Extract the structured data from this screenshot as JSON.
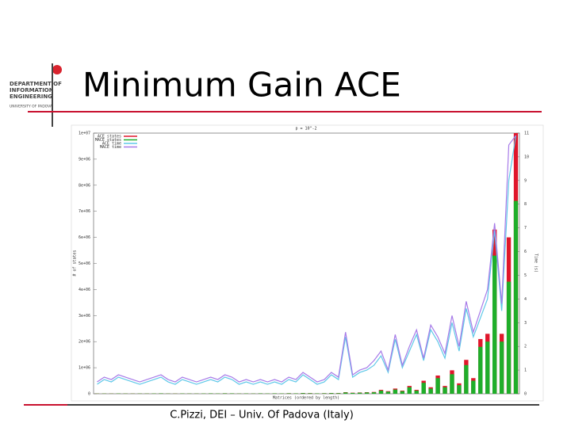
{
  "header": {
    "logo": [
      "DEPARTMENT OF",
      "INFORMATION",
      "ENGINEERING",
      "UNIVERSITY OF PADOVA"
    ],
    "title": "Minimum Gain ACE"
  },
  "footer": "C.Pizzi, DEI – Univ. Of Padova (Italy)",
  "chart_data": {
    "type": "bar",
    "title": "p = 10^-2",
    "x_label": "Matrices (ordered by length)",
    "y_label": "# of states",
    "y2_label": "Time (s)",
    "legend": "upper left",
    "grid": false,
    "categories": [
      null,
      null,
      null,
      null,
      null,
      null,
      null,
      null,
      null,
      null,
      null,
      null,
      null,
      null,
      null,
      null,
      null,
      null,
      null,
      null,
      null,
      null,
      null,
      null,
      null,
      null,
      null,
      null,
      null,
      null,
      null,
      null,
      null,
      null,
      null,
      null,
      null,
      null,
      null,
      null,
      null,
      null,
      null,
      null,
      null,
      null,
      null,
      null,
      null,
      null,
      null,
      null,
      null,
      null,
      null,
      null,
      null,
      null,
      null,
      null
    ],
    "ylim": [
      0,
      10000000
    ],
    "yticks": [
      0,
      {
        "value": 1000000,
        "label": "1e+06"
      },
      {
        "value": 2000000,
        "label": "2e+06"
      },
      {
        "value": 3000000,
        "label": "3e+06"
      },
      {
        "value": 4000000,
        "label": "4e+06"
      },
      {
        "value": 5000000,
        "label": "5e+06"
      },
      {
        "value": 6000000,
        "label": "6e+06"
      },
      {
        "value": 7000000,
        "label": "7e+06"
      },
      {
        "value": 8000000,
        "label": "8e+06"
      },
      {
        "value": 9000000,
        "label": "9e+06"
      },
      {
        "value": 10000000,
        "label": "1e+07"
      }
    ],
    "y2lim": [
      0,
      11
    ],
    "y2ticks": [
      0,
      1,
      2,
      3,
      4,
      5,
      6,
      7,
      8,
      9,
      10,
      11
    ],
    "series": [
      {
        "name": "ACE states",
        "color": "#e0162b",
        "kind": "bar",
        "values": [
          10000,
          12000,
          10000,
          15000,
          12000,
          10000,
          14000,
          12000,
          15000,
          18000,
          12000,
          10000,
          15000,
          14000,
          12000,
          15000,
          18000,
          15000,
          20000,
          18000,
          14000,
          16000,
          14000,
          18000,
          15000,
          18000,
          16000,
          22000,
          18000,
          30000,
          25000,
          18000,
          22000,
          30000,
          28000,
          60000,
          40000,
          50000,
          60000,
          70000,
          150000,
          100000,
          200000,
          120000,
          300000,
          150000,
          500000,
          250000,
          700000,
          300000,
          900000,
          400000,
          1300000,
          600000,
          2100000,
          2300000,
          6300000,
          2300000,
          6000000,
          10000000
        ]
      },
      {
        "name": "MACE states",
        "color": "#1fae2a",
        "kind": "bar",
        "values": [
          8000,
          10000,
          8000,
          12000,
          10000,
          8000,
          11000,
          10000,
          12000,
          15000,
          10000,
          8000,
          12000,
          11000,
          10000,
          12000,
          15000,
          12000,
          16000,
          15000,
          11000,
          13000,
          11000,
          15000,
          12000,
          15000,
          13000,
          18000,
          15000,
          25000,
          20000,
          15000,
          18000,
          25000,
          22000,
          50000,
          32000,
          40000,
          50000,
          56000,
          120000,
          80000,
          160000,
          100000,
          250000,
          120000,
          420000,
          200000,
          600000,
          250000,
          750000,
          330000,
          1100000,
          500000,
          1800000,
          2000000,
          5300000,
          2000000,
          4300000,
          7400000
        ]
      },
      {
        "name": "ACE time",
        "color": "#5fc8e8",
        "kind": "line",
        "axis": "y2",
        "values": [
          0.4,
          0.6,
          0.5,
          0.7,
          0.6,
          0.5,
          0.4,
          0.5,
          0.6,
          0.7,
          0.5,
          0.4,
          0.6,
          0.5,
          0.4,
          0.5,
          0.6,
          0.5,
          0.7,
          0.6,
          0.4,
          0.5,
          0.4,
          0.5,
          0.4,
          0.5,
          0.4,
          0.6,
          0.5,
          0.8,
          0.6,
          0.4,
          0.5,
          0.8,
          0.6,
          2.4,
          0.7,
          0.9,
          1.0,
          1.2,
          1.6,
          0.9,
          2.3,
          1.1,
          1.8,
          2.5,
          1.4,
          2.7,
          2.2,
          1.5,
          3.0,
          1.8,
          3.6,
          2.4,
          3.2,
          4.0,
          6.9,
          3.5,
          9.0,
          10.9
        ]
      },
      {
        "name": "MACE time",
        "color": "#a77be8",
        "kind": "line",
        "axis": "y2",
        "values": [
          0.5,
          0.7,
          0.6,
          0.8,
          0.7,
          0.6,
          0.5,
          0.6,
          0.7,
          0.8,
          0.6,
          0.5,
          0.7,
          0.6,
          0.5,
          0.6,
          0.7,
          0.6,
          0.8,
          0.7,
          0.5,
          0.6,
          0.5,
          0.6,
          0.5,
          0.6,
          0.5,
          0.7,
          0.6,
          0.9,
          0.7,
          0.5,
          0.6,
          0.9,
          0.7,
          2.6,
          0.8,
          1.0,
          1.1,
          1.4,
          1.8,
          1.0,
          2.5,
          1.2,
          2.0,
          2.7,
          1.5,
          2.9,
          2.4,
          1.7,
          3.3,
          2.0,
          3.9,
          2.6,
          3.5,
          4.4,
          7.2,
          3.8,
          10.5,
          10.9
        ]
      }
    ]
  }
}
